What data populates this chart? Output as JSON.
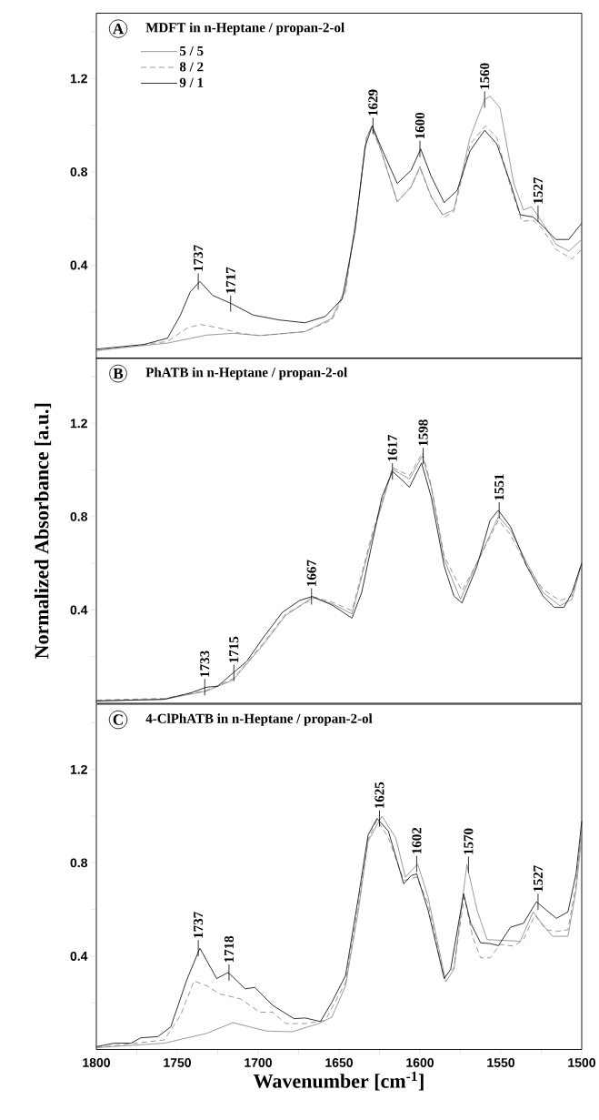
{
  "chart_data": [
    {
      "type": "line",
      "title": "MDFT in n-Heptane / propan-2-ol",
      "annotations": [
        "A",
        {
          "text": "1737",
          "x": 1737,
          "y": 0.33
        },
        {
          "text": "1717",
          "x": 1717,
          "y": 0.235
        },
        {
          "text": "1629",
          "x": 1629,
          "y": 0.997
        },
        {
          "text": "1600",
          "x": 1600,
          "y": 0.898
        },
        {
          "text": "1560",
          "x": 1560,
          "y": 1.11
        },
        {
          "text": "1527",
          "x": 1527,
          "y": 0.62
        }
      ],
      "xlim": [
        1800,
        1500
      ],
      "ylim": [
        0,
        1.48
      ],
      "yticks": [
        {
          "value": 0.2,
          "label": null
        },
        0.4,
        {
          "value": 0.6,
          "label": null
        },
        0.8,
        {
          "value": 1.0,
          "label": null
        },
        1.2,
        {
          "value": 1.4,
          "label": null
        }
      ],
      "tick_labels": "y",
      "legend": "top left",
      "series": [
        {
          "name": "5 / 5",
          "color": "#808080",
          "line_style": "solid",
          "x": [
            1800,
            1756,
            1732,
            1715.5,
            1699,
            1671,
            1654.4,
            1646,
            1638,
            1633,
            1629.5,
            1624,
            1614,
            1605.5,
            1600,
            1593,
            1586,
            1579,
            1569,
            1560,
            1556.6,
            1550.5,
            1542,
            1536,
            1531,
            1524,
            1516,
            1508,
            1500
          ],
          "values": [
            0.034,
            0.066,
            0.1,
            0.108,
            0.098,
            0.115,
            0.172,
            0.3,
            0.67,
            0.947,
            0.997,
            0.89,
            0.672,
            0.735,
            0.823,
            0.693,
            0.616,
            0.637,
            0.947,
            1.11,
            1.124,
            1.074,
            0.75,
            0.637,
            0.65,
            0.58,
            0.49,
            0.46,
            0.51
          ]
        },
        {
          "name": "8 / 2",
          "color": "#808080",
          "line_style": "dashed",
          "x": [
            1800,
            1756,
            1744,
            1736,
            1723.6,
            1711,
            1699,
            1671,
            1654.4,
            1646,
            1638,
            1633,
            1630,
            1624,
            1614,
            1605.5,
            1600,
            1593,
            1585,
            1579,
            1569,
            1559.5,
            1552.5,
            1544,
            1537,
            1530,
            1524,
            1516,
            1506,
            1500
          ],
          "values": [
            0.034,
            0.073,
            0.13,
            0.146,
            0.13,
            0.108,
            0.098,
            0.115,
            0.165,
            0.285,
            0.67,
            0.947,
            0.99,
            0.89,
            0.672,
            0.735,
            0.817,
            0.693,
            0.605,
            0.63,
            0.919,
            0.997,
            0.947,
            0.736,
            0.588,
            0.592,
            0.553,
            0.468,
            0.426,
            0.468
          ]
        },
        {
          "name": "9 / 1",
          "color": "#000000",
          "line_style": "solid",
          "x": [
            1800,
            1770.5,
            1756,
            1748,
            1742,
            1736,
            1728,
            1716.5,
            1703,
            1687,
            1671,
            1658.5,
            1648,
            1640,
            1634,
            1629.5,
            1624,
            1614,
            1605.5,
            1599.5,
            1593,
            1585,
            1577,
            1569,
            1560,
            1552.5,
            1544,
            1538,
            1530,
            1524,
            1516,
            1508,
            1500
          ],
          "values": [
            0.04,
            0.06,
            0.087,
            0.186,
            0.285,
            0.33,
            0.27,
            0.235,
            0.186,
            0.165,
            0.153,
            0.18,
            0.256,
            0.55,
            0.905,
            0.997,
            0.905,
            0.75,
            0.806,
            0.898,
            0.78,
            0.668,
            0.72,
            0.89,
            0.978,
            0.92,
            0.75,
            0.616,
            0.606,
            0.567,
            0.51,
            0.51,
            0.58
          ]
        }
      ]
    },
    {
      "type": "line",
      "title": "PhATB in n-Heptane / propan-2-ol",
      "ylabel": "Normalized Absorbance [a.u.]",
      "annotations": [
        "B",
        {
          "text": "1733",
          "x": 1733,
          "y": 0.069
        },
        {
          "text": "1715",
          "x": 1715,
          "y": 0.13
        },
        {
          "text": "1667",
          "x": 1667,
          "y": 0.458
        },
        {
          "text": "1617",
          "x": 1617,
          "y": 0.994
        },
        {
          "text": "1598",
          "x": 1598,
          "y": 1.06
        },
        {
          "text": "1551",
          "x": 1551,
          "y": 0.827
        }
      ],
      "xlim": [
        1800,
        1500
      ],
      "ylim": [
        0,
        1.48
      ],
      "yticks": [
        {
          "value": 0.2,
          "label": null
        },
        0.4,
        {
          "value": 0.6,
          "label": null
        },
        0.8,
        {
          "value": 1.0,
          "label": null
        },
        1.2,
        {
          "value": 1.4,
          "label": null
        }
      ],
      "tick_labels": "y",
      "series": [
        {
          "color": "#808080",
          "line_style": "solid",
          "x": [
            1800,
            1758,
            1732,
            1715.5,
            1697,
            1683,
            1666.5,
            1654,
            1642,
            1630,
            1617,
            1606.5,
            1598.5,
            1593,
            1585,
            1575,
            1564.7,
            1551.5,
            1544,
            1534,
            1524,
            1513.5,
            1506,
            1500
          ],
          "values": [
            0.01,
            0.017,
            0.052,
            0.1,
            0.25,
            0.376,
            0.454,
            0.426,
            0.383,
            0.7,
            1.004,
            0.961,
            1.06,
            0.926,
            0.616,
            0.446,
            0.602,
            0.8,
            0.743,
            0.602,
            0.475,
            0.418,
            0.446,
            0.6
          ]
        },
        {
          "color": "#808080",
          "line_style": "dashed",
          "x": [
            1800,
            1758,
            1732,
            1715.5,
            1697,
            1683,
            1664.5,
            1654,
            1642,
            1630,
            1617,
            1606.5,
            1598.5,
            1593,
            1585,
            1574,
            1564.7,
            1551.5,
            1544,
            1534,
            1524,
            1513.5,
            1506,
            1500
          ],
          "values": [
            0.014,
            0.021,
            0.055,
            0.105,
            0.256,
            0.383,
            0.454,
            0.433,
            0.397,
            0.715,
            1.011,
            0.975,
            1.074,
            0.933,
            0.63,
            0.482,
            0.602,
            0.785,
            0.722,
            0.588,
            0.489,
            0.44,
            0.46,
            0.607
          ]
        },
        {
          "color": "#000000",
          "line_style": "solid",
          "x": [
            1800,
            1758,
            1741.5,
            1732,
            1725,
            1715.5,
            1707,
            1697,
            1685,
            1674.5,
            1666.5,
            1654,
            1642,
            1636,
            1630,
            1623.5,
            1617,
            1611.5,
            1606.5,
            1599,
            1593,
            1585,
            1579,
            1574,
            1564.7,
            1556.6,
            1551.5,
            1544,
            1534,
            1524,
            1517,
            1511,
            1506,
            1500
          ],
          "values": [
            0.01,
            0.017,
            0.045,
            0.069,
            0.073,
            0.13,
            0.18,
            0.28,
            0.39,
            0.44,
            0.458,
            0.42,
            0.365,
            0.475,
            0.672,
            0.884,
            0.994,
            0.96,
            0.926,
            1.03,
            0.884,
            0.588,
            0.46,
            0.43,
            0.588,
            0.785,
            0.827,
            0.757,
            0.588,
            0.46,
            0.411,
            0.411,
            0.475,
            0.6
          ]
        }
      ]
    },
    {
      "type": "line",
      "title": "4-ClPhATB in n-Heptane / propan-2-ol",
      "xlabel": "Wavenumber [cm$^{-1}$]",
      "annotations": [
        "C",
        {
          "text": "1737",
          "x": 1737,
          "y": 0.434
        },
        {
          "text": "1718",
          "x": 1718,
          "y": 0.33
        },
        {
          "text": "1625",
          "x": 1625,
          "y": 0.99
        },
        {
          "text": "1602",
          "x": 1602,
          "y": 0.795
        },
        {
          "text": "1570",
          "x": 1570,
          "y": 0.792
        },
        {
          "text": "1527",
          "x": 1527,
          "y": 0.633
        }
      ],
      "xlim": [
        1800,
        1500
      ],
      "ylim": [
        0,
        1.48
      ],
      "xticks": [
        1800,
        {
          "value": 1775,
          "label": null
        },
        1750,
        {
          "value": 1725,
          "label": null
        },
        1700,
        {
          "value": 1675,
          "label": null
        },
        1650,
        {
          "value": 1625,
          "label": null
        },
        1600,
        {
          "value": 1575,
          "label": null
        },
        1550,
        {
          "value": 1525,
          "label": null
        },
        1500
      ],
      "yticks": [
        {
          "value": 0.2,
          "label": null
        },
        0.4,
        {
          "value": 0.6,
          "label": null
        },
        0.8,
        {
          "value": 1.0,
          "label": null
        },
        1.2,
        {
          "value": 1.4,
          "label": null
        }
      ],
      "series": [
        {
          "color": "#808080",
          "line_style": "solid",
          "x": [
            1800,
            1758,
            1731.8,
            1715.5,
            1695,
            1679,
            1662.6,
            1654.4,
            1646,
            1638,
            1632,
            1623.5,
            1615,
            1609,
            1601.4,
            1595,
            1584,
            1579,
            1571,
            1564.7,
            1558.5,
            1538,
            1530,
            1524,
            1518,
            1508.5,
            1503.5,
            1500
          ],
          "values": [
            0.008,
            0.027,
            0.069,
            0.115,
            0.079,
            0.076,
            0.111,
            0.139,
            0.273,
            0.598,
            0.894,
            1.0,
            0.908,
            0.739,
            0.795,
            0.654,
            0.29,
            0.344,
            0.792,
            0.598,
            0.471,
            0.464,
            0.59,
            0.534,
            0.485,
            0.485,
            0.683,
            0.922
          ]
        },
        {
          "color": "#808080",
          "line_style": "dashed",
          "x": [
            1800,
            1758,
            1748,
            1739.6,
            1731.8,
            1723.6,
            1711,
            1699,
            1691,
            1683,
            1671,
            1658.5,
            1646,
            1638,
            1632,
            1626.5,
            1619.5,
            1610,
            1602,
            1595,
            1585,
            1579,
            1572.6,
            1567.5,
            1562.5,
            1556.6,
            1550.5,
            1542,
            1536,
            1529,
            1522,
            1515.6,
            1508.5,
            1503.5,
            1500
          ],
          "values": [
            0.008,
            0.041,
            0.146,
            0.294,
            0.273,
            0.238,
            0.217,
            0.16,
            0.16,
            0.111,
            0.111,
            0.125,
            0.287,
            0.626,
            0.9,
            0.985,
            0.908,
            0.724,
            0.739,
            0.626,
            0.309,
            0.351,
            0.654,
            0.485,
            0.393,
            0.393,
            0.45,
            0.443,
            0.471,
            0.576,
            0.513,
            0.506,
            0.513,
            0.71,
            0.95
          ]
        },
        {
          "color": "#000000",
          "line_style": "solid",
          "x": [
            1800,
            1789,
            1778.6,
            1772.5,
            1762,
            1754,
            1744,
            1736,
            1725.6,
            1718.5,
            1708,
            1702,
            1691,
            1677.8,
            1671,
            1661.5,
            1654.4,
            1646,
            1638,
            1632,
            1626.5,
            1619.5,
            1610,
            1605.5,
            1602,
            1595,
            1585,
            1581,
            1573,
            1568.6,
            1562.5,
            1556.6,
            1551.5,
            1544,
            1536,
            1528,
            1522,
            1515.6,
            1508.5,
            1503.5,
            1500
          ],
          "values": [
            0.012,
            0.027,
            0.027,
            0.05,
            0.055,
            0.097,
            0.3,
            0.434,
            0.304,
            0.33,
            0.26,
            0.266,
            0.189,
            0.132,
            0.135,
            0.12,
            0.203,
            0.316,
            0.654,
            0.92,
            0.99,
            0.936,
            0.71,
            0.745,
            0.753,
            0.598,
            0.304,
            0.344,
            0.668,
            0.541,
            0.457,
            0.454,
            0.445,
            0.524,
            0.541,
            0.633,
            0.598,
            0.562,
            0.59,
            0.753,
            0.978
          ]
        }
      ]
    }
  ]
}
